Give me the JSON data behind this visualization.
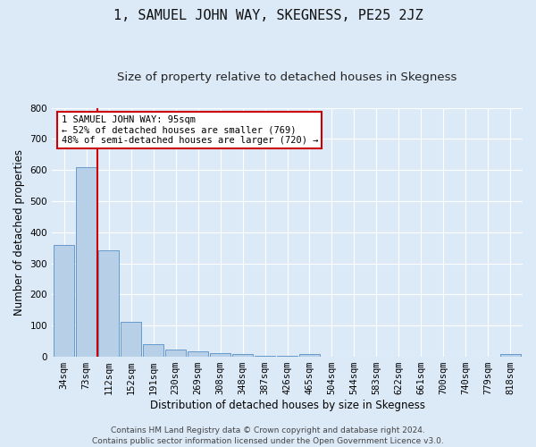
{
  "title": "1, SAMUEL JOHN WAY, SKEGNESS, PE25 2JZ",
  "subtitle": "Size of property relative to detached houses in Skegness",
  "xlabel": "Distribution of detached houses by size in Skegness",
  "ylabel": "Number of detached properties",
  "categories": [
    "34sqm",
    "73sqm",
    "112sqm",
    "152sqm",
    "191sqm",
    "230sqm",
    "269sqm",
    "308sqm",
    "348sqm",
    "387sqm",
    "426sqm",
    "465sqm",
    "504sqm",
    "544sqm",
    "583sqm",
    "622sqm",
    "661sqm",
    "700sqm",
    "740sqm",
    "779sqm",
    "818sqm"
  ],
  "values": [
    358,
    610,
    342,
    113,
    40,
    22,
    18,
    13,
    8,
    2,
    2,
    10,
    0,
    0,
    0,
    0,
    0,
    0,
    0,
    0,
    8
  ],
  "bar_color": "#b8cfe8",
  "bar_edge_color": "#6699cc",
  "highlight_line_color": "#cc0000",
  "annotation_text": "1 SAMUEL JOHN WAY: 95sqm\n← 52% of detached houses are smaller (769)\n48% of semi-detached houses are larger (720) →",
  "annotation_box_color": "#ffffff",
  "annotation_box_edge": "#cc0000",
  "ylim": [
    0,
    800
  ],
  "yticks": [
    0,
    100,
    200,
    300,
    400,
    500,
    600,
    700,
    800
  ],
  "bg_color": "#dce9f7",
  "plot_bg_color": "#dce9f7",
  "footer": "Contains HM Land Registry data © Crown copyright and database right 2024.\nContains public sector information licensed under the Open Government Licence v3.0.",
  "title_fontsize": 11,
  "subtitle_fontsize": 9.5,
  "axis_label_fontsize": 8.5,
  "tick_fontsize": 7.5,
  "annotation_fontsize": 7.5,
  "footer_fontsize": 6.5
}
